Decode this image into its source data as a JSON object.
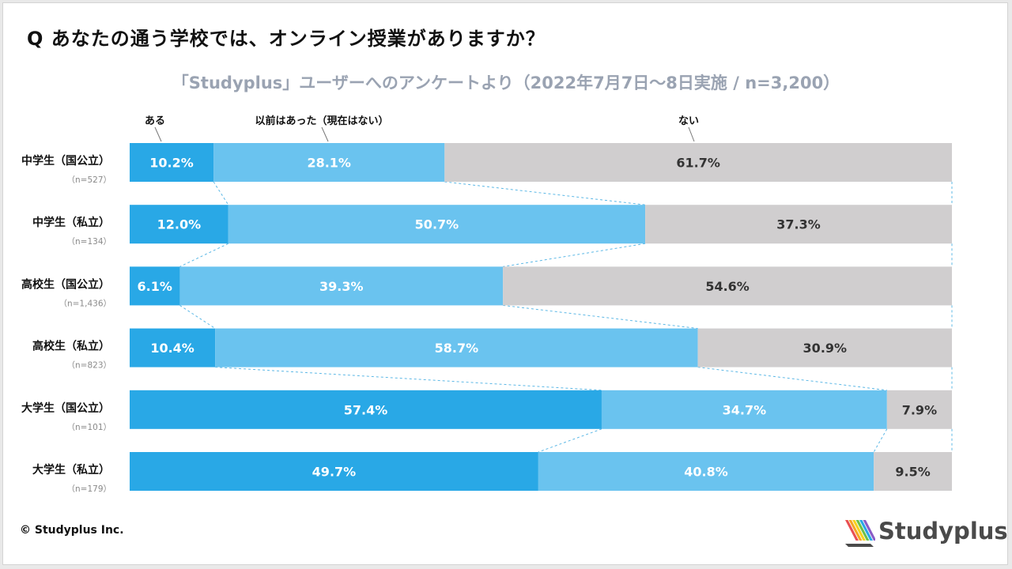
{
  "page": {
    "question": "Q あなたの通う学校では、オンライン授業がありますか？",
    "subtitle": "「Studyplus」ユーザーへのアンケートより（2022年7月7日〜8日実施 / n=3,200）",
    "copyright": "© Studyplus Inc.",
    "brand": "Studyplus"
  },
  "colors": {
    "aru": "#29a8e6",
    "previously": "#6ac3ef",
    "nai": "#d0cecf",
    "connector": "#5cb8e6",
    "logo": [
      "#e94f52",
      "#f5a623",
      "#f7d21e",
      "#6cc04a",
      "#29a8e6",
      "#8a5cc7"
    ]
  },
  "chart_data": {
    "type": "bar",
    "orientation": "horizontal",
    "stacked": "percent",
    "title": "Q あなたの通う学校では、オンライン授業がありますか？",
    "subtitle": "「Studyplus」ユーザーへのアンケートより（2022年7月7日〜8日実施 / n=3,200）",
    "xlim": [
      0,
      100
    ],
    "categories": [
      "中学生（国公立）",
      "中学生（私立）",
      "高校生（国公立）",
      "高校生（私立）",
      "大学生（国公立）",
      "大学生（私立）"
    ],
    "sample_sizes": [
      "（n=527）",
      "（n=134）",
      "（n=1,436）",
      "（n=823）",
      "（n=101）",
      "（n=179）"
    ],
    "series": [
      {
        "name": "ある",
        "values": [
          10.2,
          12.0,
          6.1,
          10.4,
          57.4,
          49.7
        ],
        "labels": [
          "10.2%",
          "12.0%",
          "6.1%",
          "10.4%",
          "57.4%",
          "49.7%"
        ]
      },
      {
        "name": "以前はあった（現在はない）",
        "values": [
          28.1,
          50.7,
          39.3,
          58.7,
          34.7,
          40.8
        ],
        "labels": [
          "28.1%",
          "50.7%",
          "39.3%",
          "58.7%",
          "34.7%",
          "40.8%"
        ]
      },
      {
        "name": "ない",
        "values": [
          61.7,
          37.3,
          54.6,
          30.9,
          7.9,
          9.5
        ],
        "labels": [
          "61.7%",
          "37.3%",
          "54.6%",
          "30.9%",
          "7.9%",
          "9.5%"
        ]
      }
    ],
    "legend": "top, labels above first bar",
    "series_connectors": true
  }
}
